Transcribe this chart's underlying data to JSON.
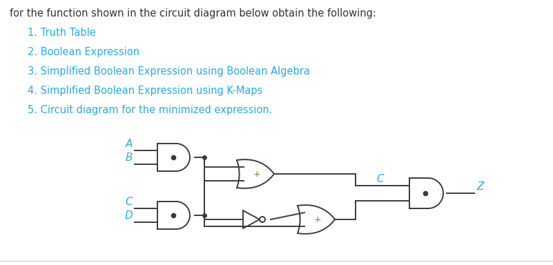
{
  "title_text": "for the function shown in the circuit diagram below obtain the following:",
  "items": [
    "1. Truth Table",
    "2. Boolean Expression",
    "3. Simplified Boolean Expression using Boolean Algebra",
    "4. Simplified Boolean Expression using K-Maps",
    "5. Circuit diagram for the minimized expression."
  ],
  "title_color": "#333333",
  "item_color": "#29ABE2",
  "cyan_color": "#29ABE2",
  "gate_color": "#3a3a3a",
  "bg_color": "#ffffff",
  "text_fontsize": 10.5,
  "item_fontsize": 10.5
}
